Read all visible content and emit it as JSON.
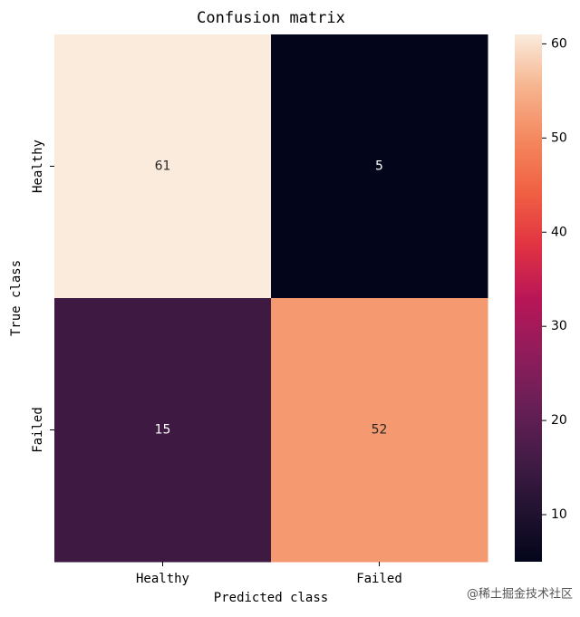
{
  "chart_data": {
    "type": "heatmap",
    "title": "Confusion matrix",
    "x_label": "Predicted class",
    "y_label": "True class",
    "x_categories": [
      "Healthy",
      "Failed"
    ],
    "y_categories": [
      "Healthy",
      "Failed"
    ],
    "values": [
      [
        61,
        5
      ],
      [
        15,
        52
      ]
    ],
    "clim": [
      5,
      61
    ],
    "cticks": [
      10,
      20,
      30,
      40,
      50,
      60
    ],
    "colormap": [
      "#03051a",
      "#221331",
      "#451c47",
      "#6a1f56",
      "#921c5b",
      "#b91657",
      "#e13342",
      "#f06043",
      "#f4875e",
      "#f6b48e",
      "#faebdd"
    ]
  },
  "watermark": "@稀土掘金技术社区"
}
